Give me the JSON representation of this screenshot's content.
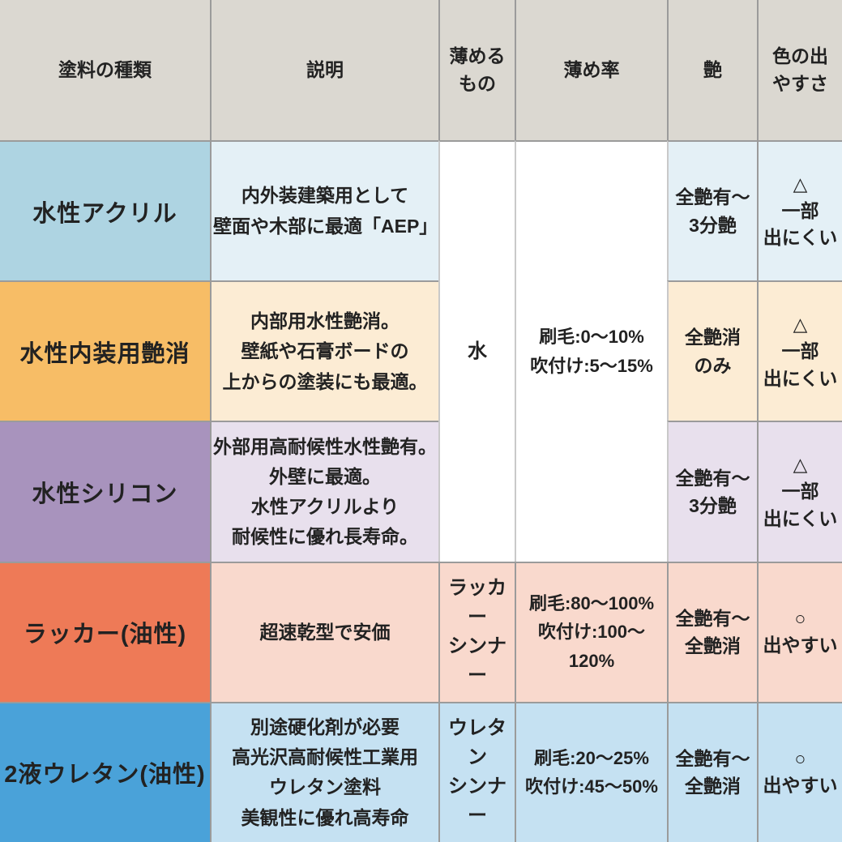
{
  "colors": {
    "header_bg": "#dbd8d1",
    "white_bg": "#ffffff",
    "grid_border": "#9b9b9b",
    "grid_border_light": "#c9c9c9",
    "text": "#222222"
  },
  "chart_data": {
    "type": "table",
    "columns": [
      "塗料の種類",
      "説明",
      "薄める\nもの",
      "薄め率",
      "艶",
      "色の出\nやすさ"
    ],
    "merged_thinner_rows_1_3": {
      "thinner": "水",
      "ratio": "刷毛:0〜10%\n吹付け:5〜15%"
    },
    "rows": [
      {
        "paint_type": "水性アクリル",
        "description": "内外装建築用として\n壁面や木部に最適「AEP」",
        "gloss": "全艶有〜\n3分艶",
        "color_ease": "△\n一部\n出にくい",
        "label_bg": "#aed4e2",
        "tint_bg": "#e4f0f6"
      },
      {
        "paint_type": "水性内装用艶消",
        "description": "内部用水性艶消。\n壁紙や石膏ボードの\n上からの塗装にも最適。",
        "gloss": "全艶消\nのみ",
        "color_ease": "△\n一部\n出にくい",
        "label_bg": "#f7bd66",
        "tint_bg": "#fcecd4"
      },
      {
        "paint_type": "水性シリコン",
        "description": "外部用高耐候性水性艶有。\n外壁に最適。\n水性アクリルより\n耐候性に優れ長寿命。",
        "gloss": "全艶有〜\n3分艶",
        "color_ease": "△\n一部\n出にくい",
        "label_bg": "#a893bd",
        "tint_bg": "#e8e0ed"
      },
      {
        "paint_type": "ラッカー(油性)",
        "description": "超速乾型で安価",
        "thinner": "ラッカー\nシンナー",
        "ratio": "刷毛:80〜100%\n吹付け:100〜120%",
        "gloss": "全艶有〜\n全艶消",
        "color_ease": "○\n出やすい",
        "label_bg": "#ee7a57",
        "tint_bg": "#f9d9cd"
      },
      {
        "paint_type": "2液ウレタン(油性)",
        "description": "別途硬化剤が必要\n高光沢高耐候性工業用\nウレタン塗料\n美観性に優れ高寿命",
        "thinner": "ウレタン\nシンナー",
        "ratio": "刷毛:20〜25%\n吹付け:45〜50%",
        "gloss": "全艶有〜\n全艶消",
        "color_ease": "○\n出やすい",
        "label_bg": "#4aa2d9",
        "tint_bg": "#c5e1f2"
      }
    ]
  }
}
